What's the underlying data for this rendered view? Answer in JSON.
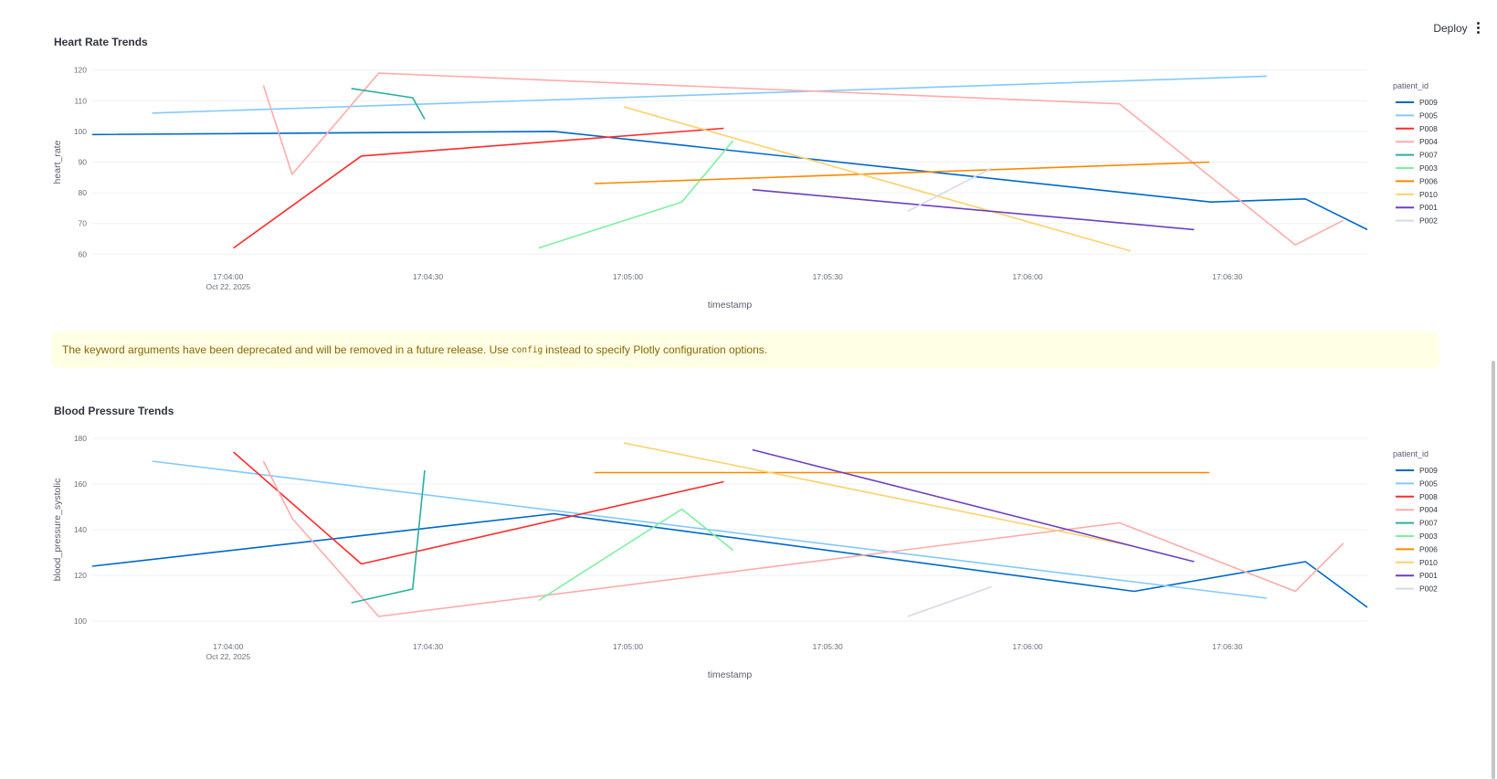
{
  "header": {
    "deploy_label": "Deploy",
    "menu_icon": "vertical-dots-icon"
  },
  "charts_section": {
    "heart_rate_title": "Heart Rate Trends",
    "blood_pressure_title": "Blood Pressure Trends"
  },
  "warning": {
    "text_before": "The keyword arguments have been deprecated and will be removed in a future release. Use",
    "code": "config",
    "text_after": "instead to specify Plotly configuration options."
  },
  "chart_data": [
    {
      "type": "line",
      "title": "Heart Rate Trends",
      "xlabel": "timestamp",
      "ylabel": "heart_rate",
      "x_unit": "seconds after 17:03:00",
      "x_ticks": [
        {
          "value": 60,
          "label": "17:04:00",
          "sublabel": "Oct 22, 2025"
        },
        {
          "value": 90,
          "label": "17:04:30"
        },
        {
          "value": 120,
          "label": "17:05:00"
        },
        {
          "value": 150,
          "label": "17:05:30"
        },
        {
          "value": 180,
          "label": "17:06:00"
        },
        {
          "value": 210,
          "label": "17:06:30"
        }
      ],
      "xlim": [
        39.6,
        231.0
      ],
      "ylim": [
        58,
        122
      ],
      "yticks": [
        60,
        70,
        80,
        90,
        100,
        110,
        120
      ],
      "legend_title": "patient_id",
      "legend_position": "right",
      "grid": true,
      "series": [
        {
          "name": "P009",
          "color": "#0068c9",
          "points": [
            [
              39.6,
              99
            ],
            [
              108.9,
              100
            ],
            [
              207.5,
              77
            ],
            [
              221.7,
              78
            ],
            [
              231.0,
              68
            ]
          ]
        },
        {
          "name": "P005",
          "color": "#83c9ff",
          "points": [
            [
              48.6,
              106
            ],
            [
              215.9,
              118
            ]
          ]
        },
        {
          "name": "P008",
          "color": "#ff2b2b",
          "points": [
            [
              60.8,
              62
            ],
            [
              80.0,
              92
            ],
            [
              134.4,
              101
            ]
          ]
        },
        {
          "name": "P004",
          "color": "#ffabab",
          "points": [
            [
              65.3,
              115
            ],
            [
              69.6,
              86
            ],
            [
              82.6,
              119
            ],
            [
              193.8,
              109
            ],
            [
              220.2,
              63
            ],
            [
              227.4,
              71
            ]
          ]
        },
        {
          "name": "P007",
          "color": "#29b09d",
          "points": [
            [
              78.5,
              114
            ],
            [
              87.7,
              111
            ],
            [
              89.5,
              104
            ]
          ]
        },
        {
          "name": "P003",
          "color": "#7defa1",
          "points": [
            [
              106.6,
              62
            ],
            [
              128.1,
              77
            ],
            [
              135.8,
              97
            ]
          ]
        },
        {
          "name": "P006",
          "color": "#ff8700",
          "points": [
            [
              115.0,
              83
            ],
            [
              207.3,
              90
            ]
          ]
        },
        {
          "name": "P010",
          "color": "#ffd16a",
          "points": [
            [
              119.4,
              108
            ],
            [
              195.5,
              61
            ]
          ]
        },
        {
          "name": "P001",
          "color": "#6d3fc0",
          "points": [
            [
              138.7,
              81
            ],
            [
              205.0,
              68
            ]
          ]
        },
        {
          "name": "P002",
          "color": "#d5dae5",
          "points": [
            [
              162.0,
              74
            ],
            [
              174.6,
              88
            ]
          ]
        }
      ]
    },
    {
      "type": "line",
      "title": "Blood Pressure Trends",
      "xlabel": "timestamp",
      "ylabel": "blood_pressure_systolic",
      "x_unit": "seconds after 17:03:00",
      "x_ticks": [
        {
          "value": 60,
          "label": "17:04:00",
          "sublabel": "Oct 22, 2025"
        },
        {
          "value": 90,
          "label": "17:04:30"
        },
        {
          "value": 120,
          "label": "17:05:00"
        },
        {
          "value": 150,
          "label": "17:05:30"
        },
        {
          "value": 180,
          "label": "17:06:00"
        },
        {
          "value": 210,
          "label": "17:06:30"
        }
      ],
      "xlim": [
        39.6,
        231.0
      ],
      "ylim": [
        96,
        184
      ],
      "yticks": [
        100,
        120,
        140,
        160,
        180
      ],
      "legend_title": "patient_id",
      "legend_position": "right",
      "grid": true,
      "series": [
        {
          "name": "P009",
          "color": "#0068c9",
          "points": [
            [
              39.6,
              124
            ],
            [
              108.9,
              147
            ],
            [
              196.0,
              113
            ],
            [
              221.7,
              126
            ],
            [
              231.0,
              106
            ]
          ]
        },
        {
          "name": "P005",
          "color": "#83c9ff",
          "points": [
            [
              48.6,
              170
            ],
            [
              215.9,
              110
            ]
          ]
        },
        {
          "name": "P008",
          "color": "#ff2b2b",
          "points": [
            [
              60.8,
              174
            ],
            [
              80.0,
              125
            ],
            [
              134.4,
              161
            ]
          ]
        },
        {
          "name": "P004",
          "color": "#ffabab",
          "points": [
            [
              65.3,
              170
            ],
            [
              69.6,
              145
            ],
            [
              82.6,
              102
            ],
            [
              193.8,
              143
            ],
            [
              220.2,
              113
            ],
            [
              227.4,
              134
            ]
          ]
        },
        {
          "name": "P007",
          "color": "#29b09d",
          "points": [
            [
              78.5,
              108
            ],
            [
              87.7,
              114
            ],
            [
              89.5,
              166
            ]
          ]
        },
        {
          "name": "P003",
          "color": "#7defa1",
          "points": [
            [
              106.6,
              109
            ],
            [
              128.1,
              149
            ],
            [
              135.8,
              131
            ]
          ]
        },
        {
          "name": "P006",
          "color": "#ff8700",
          "points": [
            [
              115.0,
              165
            ],
            [
              207.3,
              165
            ]
          ]
        },
        {
          "name": "P010",
          "color": "#ffd16a",
          "points": [
            [
              119.4,
              178
            ],
            [
              195.5,
              133
            ]
          ]
        },
        {
          "name": "P001",
          "color": "#6d3fc0",
          "points": [
            [
              138.7,
              175
            ],
            [
              205.0,
              126
            ]
          ]
        },
        {
          "name": "P002",
          "color": "#d5dae5",
          "points": [
            [
              162.0,
              102
            ],
            [
              174.6,
              115
            ]
          ]
        }
      ]
    }
  ]
}
